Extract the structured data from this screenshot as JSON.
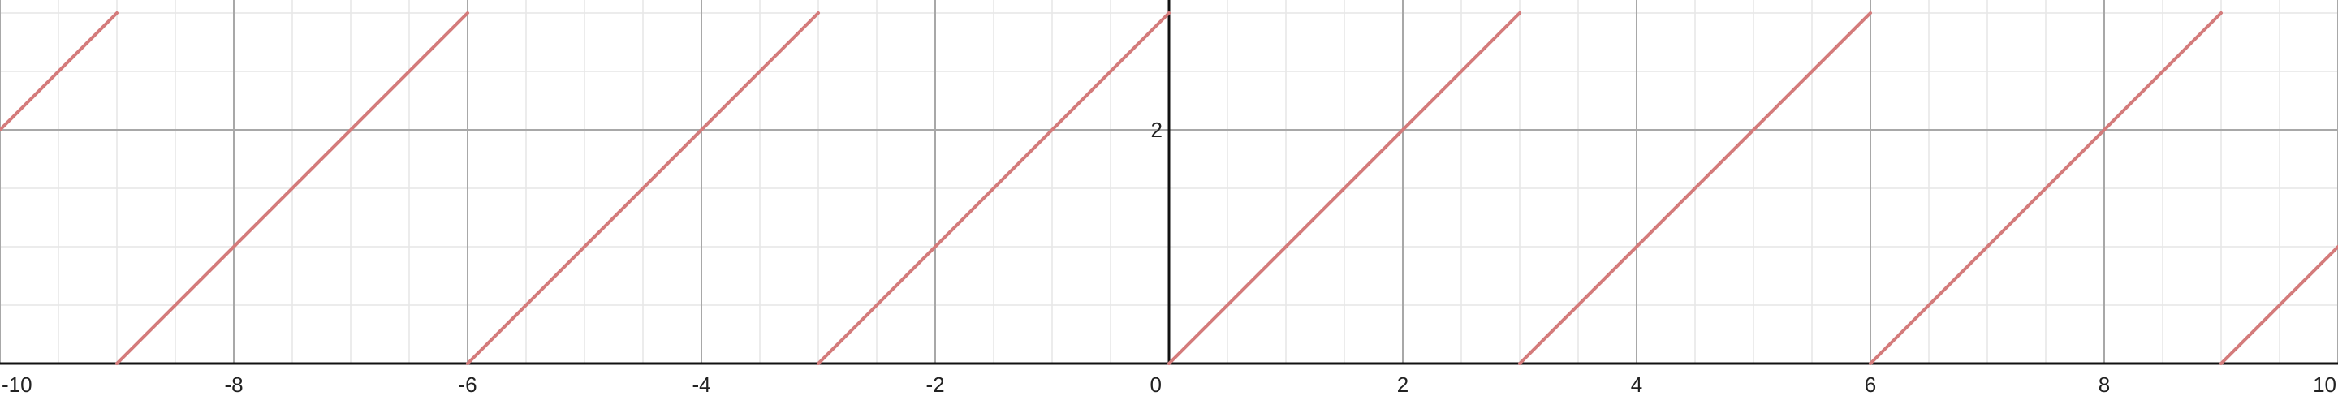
{
  "chart_data": {
    "type": "line",
    "title": "",
    "xlabel": "",
    "ylabel": "",
    "xlim": [
      -10,
      10
    ],
    "ylim": [
      0,
      3.1
    ],
    "grid": true,
    "x_ticks": [
      -10,
      -8,
      -6,
      -4,
      -2,
      0,
      2,
      4,
      6,
      8,
      10
    ],
    "x_tick_labels": [
      "-10",
      "-8",
      "-6",
      "-4",
      "-2",
      "0",
      "2",
      "4",
      "6",
      "8",
      "10"
    ],
    "y_ticks": [
      2
    ],
    "y_tick_labels": [
      "2"
    ],
    "series": [
      {
        "color": "#d47b7b",
        "segments": [
          [
            [
              -10,
              2
            ],
            [
              -9,
              3
            ]
          ],
          [
            [
              -9,
              0
            ],
            [
              -6,
              3
            ]
          ],
          [
            [
              -6,
              0
            ],
            [
              -3,
              3
            ]
          ],
          [
            [
              -3,
              0
            ],
            [
              0,
              3
            ]
          ],
          [
            [
              0,
              0
            ],
            [
              3,
              3
            ]
          ],
          [
            [
              3,
              0
            ],
            [
              6,
              3
            ]
          ],
          [
            [
              6,
              0
            ],
            [
              9,
              3
            ]
          ],
          [
            [
              9,
              0
            ],
            [
              10,
              1
            ]
          ]
        ]
      }
    ]
  },
  "colors": {
    "minor_grid": "#e6e6e6",
    "major_grid": "#a8a8a8",
    "axis": "#111111",
    "series": "#d47b7b"
  }
}
